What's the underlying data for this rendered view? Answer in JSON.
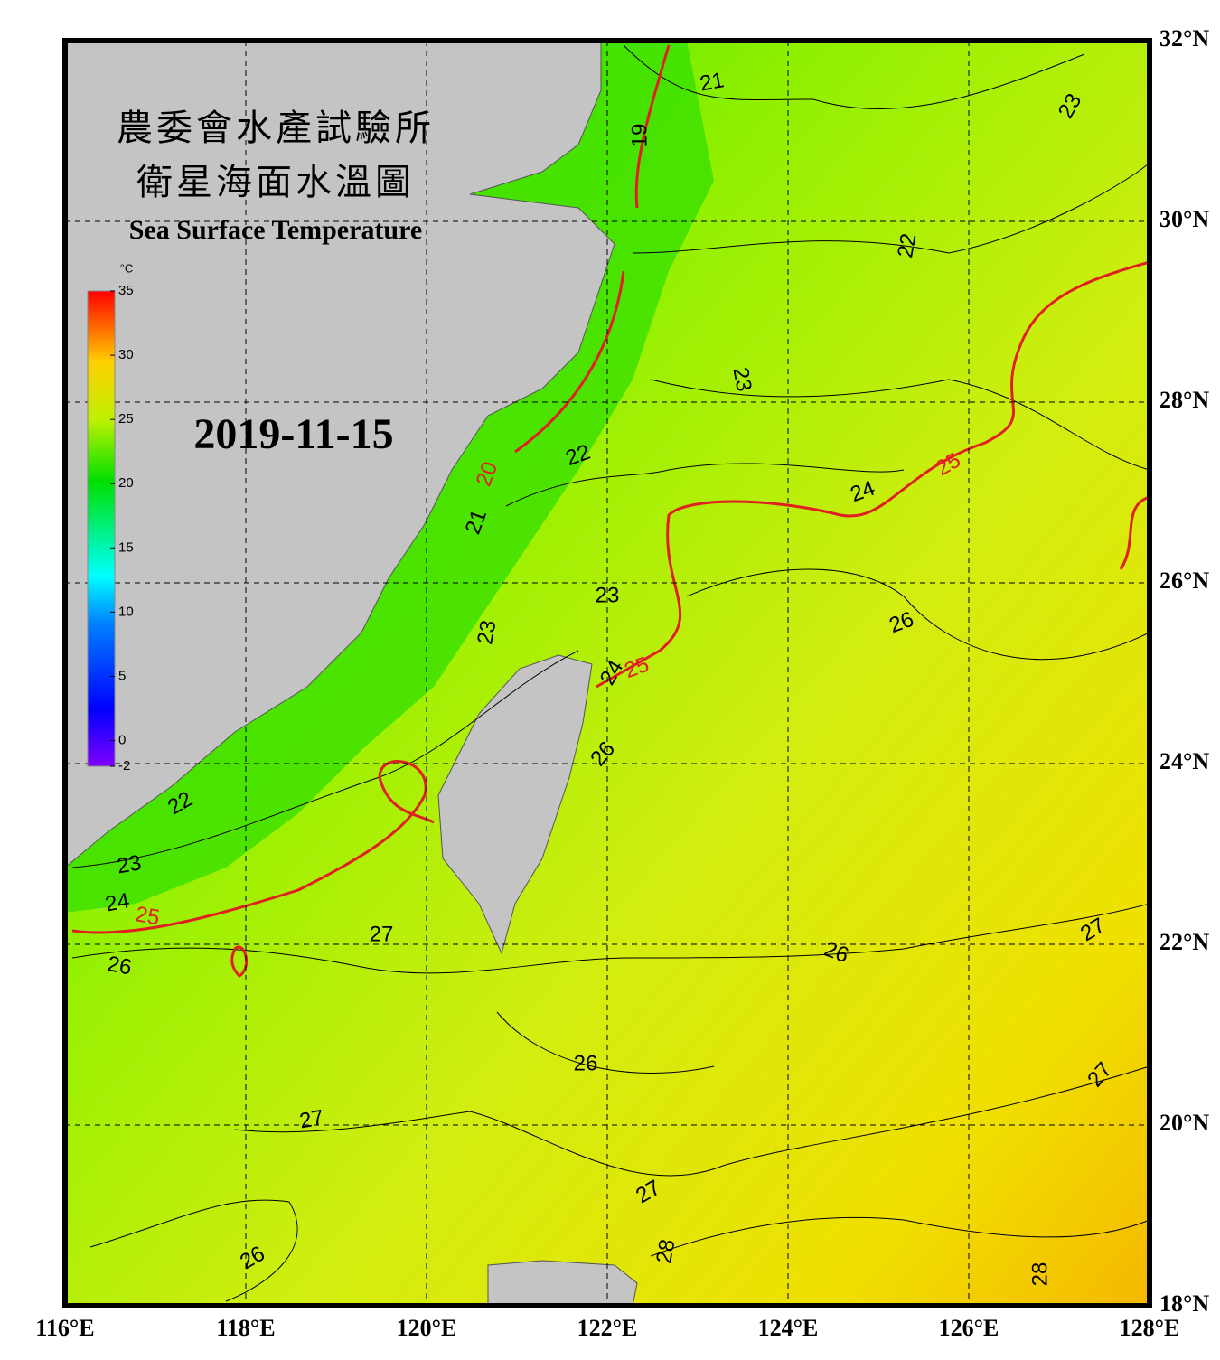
{
  "header": {
    "title_zh_1": "農委會水產試驗所",
    "title_zh_2": "衛星海面水溫圖",
    "title_en": "Sea Surface Temperature",
    "date": "2019-11-15"
  },
  "map": {
    "xlim": [
      116,
      128
    ],
    "ylim": [
      18,
      32
    ],
    "xticks": [
      {
        "value": 116,
        "label": "116°E"
      },
      {
        "value": 118,
        "label": "118°E"
      },
      {
        "value": 120,
        "label": "120°E"
      },
      {
        "value": 122,
        "label": "122°E"
      },
      {
        "value": 124,
        "label": "124°E"
      },
      {
        "value": 126,
        "label": "126°E"
      },
      {
        "value": 128,
        "label": "128°E"
      }
    ],
    "yticks": [
      {
        "value": 18,
        "label": "18°N"
      },
      {
        "value": 20,
        "label": "20°N"
      },
      {
        "value": 22,
        "label": "22°N"
      },
      {
        "value": 24,
        "label": "24°N"
      },
      {
        "value": 26,
        "label": "26°N"
      },
      {
        "value": 28,
        "label": "28°N"
      },
      {
        "value": 30,
        "label": "30°N"
      },
      {
        "value": 32,
        "label": "32°N"
      }
    ],
    "grid": true,
    "contour_labels": [
      "21",
      "23",
      "19",
      "22",
      "23",
      "22",
      "24",
      "21",
      "23",
      "26",
      "23",
      "24",
      "26",
      "22",
      "23",
      "24",
      "27",
      "26",
      "27",
      "26",
      "26",
      "27",
      "27",
      "27",
      "28",
      "26",
      "28"
    ],
    "highlight_contour_labels": [
      "25",
      "20",
      "25",
      "25"
    ],
    "highlight_color": "#e02020"
  },
  "colorbar": {
    "unit": "°C",
    "lim": [
      -2,
      35
    ],
    "ticks": [
      35,
      30,
      25,
      20,
      15,
      10,
      5,
      0,
      -2
    ]
  }
}
